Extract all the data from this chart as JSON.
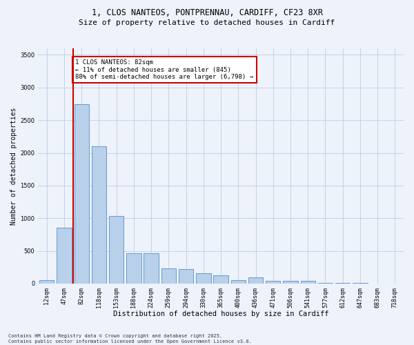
{
  "title_line1": "1, CLOS NANTEOS, PONTPRENNAU, CARDIFF, CF23 8XR",
  "title_line2": "Size of property relative to detached houses in Cardiff",
  "xlabel": "Distribution of detached houses by size in Cardiff",
  "ylabel": "Number of detached properties",
  "bar_labels": [
    "12sqm",
    "47sqm",
    "82sqm",
    "118sqm",
    "153sqm",
    "188sqm",
    "224sqm",
    "259sqm",
    "294sqm",
    "330sqm",
    "365sqm",
    "400sqm",
    "436sqm",
    "471sqm",
    "506sqm",
    "541sqm",
    "577sqm",
    "612sqm",
    "647sqm",
    "683sqm",
    "718sqm"
  ],
  "bar_values": [
    50,
    850,
    2750,
    2100,
    1030,
    460,
    460,
    230,
    220,
    160,
    130,
    55,
    90,
    45,
    40,
    40,
    15,
    10,
    5,
    3,
    2
  ],
  "bar_color": "#b8d0ea",
  "bar_edge_color": "#6699cc",
  "vline_x": 1.5,
  "vline_color": "#cc0000",
  "annotation_text": "1 CLOS NANTEOS: 82sqm\n← 11% of detached houses are smaller (845)\n88% of semi-detached houses are larger (6,798) →",
  "annotation_box_facecolor": "#ffffff",
  "annotation_box_edgecolor": "#cc0000",
  "ylim": [
    0,
    3600
  ],
  "yticks": [
    0,
    500,
    1000,
    1500,
    2000,
    2500,
    3000,
    3500
  ],
  "footer_line1": "Contains HM Land Registry data © Crown copyright and database right 2025.",
  "footer_line2": "Contains public sector information licensed under the Open Government Licence v3.0.",
  "background_color": "#eef2fb",
  "grid_color": "#c5cfe8",
  "title1_fontsize": 8.5,
  "title2_fontsize": 8.0,
  "xlabel_fontsize": 7.5,
  "ylabel_fontsize": 7.0,
  "tick_fontsize": 6.0,
  "annot_fontsize": 6.5,
  "footer_fontsize": 5.0
}
